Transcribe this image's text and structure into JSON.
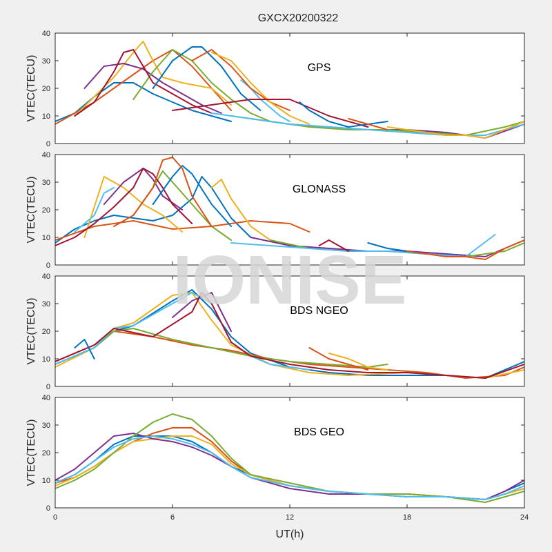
{
  "figure": {
    "title": "GXCX20200322",
    "xlabel": "UT(h)",
    "watermark": "IONISE",
    "background": "#f0f0f0",
    "axes_background": "#ffffff"
  },
  "palette": [
    "#0072BD",
    "#D95319",
    "#EDB120",
    "#7E2F8E",
    "#77AC30",
    "#4DBEEE",
    "#A2142F"
  ],
  "chart_data": [
    {
      "type": "line",
      "label": "GPS",
      "ylabel": "VTEC(TECU)",
      "xlim": [
        0,
        24
      ],
      "ylim": [
        0,
        40
      ],
      "xticks": [
        0,
        6,
        12,
        18,
        24
      ],
      "yticks": [
        0,
        10,
        20,
        30,
        40
      ],
      "grid": false,
      "series": [
        {
          "x": [
            0,
            1,
            2,
            3,
            4,
            5,
            6,
            7,
            8,
            9
          ],
          "y": [
            8,
            11,
            17,
            22,
            22,
            18,
            15,
            12,
            10,
            8
          ]
        },
        {
          "x": [
            0,
            1,
            2,
            3,
            4,
            5,
            6,
            7,
            8,
            9
          ],
          "y": [
            7,
            11,
            15,
            20,
            25,
            30,
            34,
            28,
            20,
            12
          ]
        },
        {
          "x": [
            1,
            2,
            3,
            4,
            4.5,
            5,
            5.5,
            6.5,
            8,
            9
          ],
          "y": [
            10,
            17,
            24,
            33,
            37,
            30,
            24,
            22,
            20,
            14
          ]
        },
        {
          "x": [
            1.5,
            2.5,
            3.5,
            4.5,
            5.5,
            6.5,
            7.5,
            8.5
          ],
          "y": [
            20,
            28,
            29,
            27,
            22,
            18,
            14,
            11
          ]
        },
        {
          "x": [
            4,
            5,
            6,
            7,
            8,
            9,
            10,
            11
          ],
          "y": [
            16,
            26,
            34,
            30,
            22,
            16,
            11,
            8
          ]
        },
        {
          "x": [
            9.5,
            10,
            10.5,
            11,
            11.5,
            12
          ],
          "y": [
            23,
            20,
            16,
            13,
            10,
            8
          ]
        },
        {
          "x": [
            1,
            2,
            3,
            3.5,
            4,
            5,
            6,
            7,
            8
          ],
          "y": [
            10,
            15,
            26,
            33,
            34,
            22,
            18,
            14,
            11
          ]
        },
        {
          "x": [
            5,
            6,
            7,
            7.5,
            8.5,
            9.5,
            10.5
          ],
          "y": [
            20,
            30,
            35,
            35,
            28,
            18,
            12
          ]
        },
        {
          "x": [
            7,
            8,
            9,
            10,
            11,
            12
          ],
          "y": [
            30,
            34,
            28,
            20,
            15,
            12
          ]
        },
        {
          "x": [
            8,
            9,
            10,
            11,
            12,
            13
          ],
          "y": [
            33,
            30,
            22,
            15,
            10,
            7
          ]
        },
        {
          "x": [
            10,
            12,
            14,
            16,
            18,
            20,
            22,
            24
          ],
          "y": [
            9,
            7,
            6,
            5,
            5,
            4,
            2,
            7
          ]
        },
        {
          "x": [
            9,
            11,
            13,
            15,
            17,
            19,
            21,
            23,
            24
          ],
          "y": [
            10,
            8,
            6,
            5,
            5,
            4,
            3,
            6,
            8
          ]
        },
        {
          "x": [
            8,
            10,
            12,
            14,
            16,
            18,
            20,
            22,
            24
          ],
          "y": [
            11,
            9,
            7,
            6,
            5,
            4,
            3,
            3,
            7
          ]
        },
        {
          "x": [
            6,
            8,
            10,
            12,
            14,
            16
          ],
          "y": [
            12,
            14,
            16,
            16,
            10,
            6
          ]
        },
        {
          "x": [
            12.5,
            13,
            14,
            15,
            17
          ],
          "y": [
            15,
            12,
            8,
            6,
            8
          ]
        },
        {
          "x": [
            15,
            16,
            17
          ],
          "y": [
            9,
            7,
            5
          ]
        },
        {
          "x": [
            17,
            18,
            19,
            20,
            21,
            22,
            23,
            24
          ],
          "y": [
            6,
            5,
            4,
            3,
            3,
            2,
            5,
            8
          ]
        }
      ]
    },
    {
      "type": "line",
      "label": "GLONASS",
      "ylabel": "VTEC(TECU)",
      "xlim": [
        0,
        24
      ],
      "ylim": [
        0,
        40
      ],
      "xticks": [
        0,
        6,
        12,
        18,
        24
      ],
      "yticks": [
        0,
        10,
        20,
        30,
        40
      ],
      "grid": false,
      "series": [
        {
          "x": [
            0,
            1,
            2,
            3,
            4,
            5,
            6,
            7,
            7.5,
            8,
            9,
            10
          ],
          "y": [
            8,
            13,
            16,
            18,
            17,
            16,
            18,
            24,
            32,
            28,
            17,
            10
          ]
        },
        {
          "x": [
            0,
            2,
            4,
            6,
            8,
            10,
            12,
            13
          ],
          "y": [
            9,
            14,
            16,
            13,
            14,
            16,
            15,
            12
          ]
        },
        {
          "x": [
            1.5,
            2.5,
            3.5,
            4.5,
            5.5,
            6.5
          ],
          "y": [
            10,
            32,
            28,
            22,
            18,
            12
          ]
        },
        {
          "x": [
            2.5,
            3.5,
            4.5,
            5,
            5.5,
            6.5
          ],
          "y": [
            22,
            30,
            35,
            31,
            25,
            20
          ]
        },
        {
          "x": [
            4,
            5,
            5.5,
            6,
            7,
            8,
            9
          ],
          "y": [
            18,
            28,
            34,
            30,
            22,
            14,
            9
          ]
        },
        {
          "x": [
            1,
            2,
            2.5,
            3
          ],
          "y": [
            12,
            18,
            26,
            28
          ]
        },
        {
          "x": [
            0,
            1,
            2,
            3,
            4,
            4.5,
            5,
            5.5,
            6,
            7
          ],
          "y": [
            7,
            10,
            15,
            21,
            28,
            35,
            33,
            28,
            22,
            15
          ]
        },
        {
          "x": [
            5,
            6,
            6.5,
            7,
            8,
            9
          ],
          "y": [
            22,
            32,
            36,
            33,
            22,
            14
          ]
        },
        {
          "x": [
            3,
            4,
            5,
            5.5,
            6,
            6.5,
            7,
            8
          ],
          "y": [
            14,
            18,
            28,
            38,
            39,
            35,
            25,
            14
          ]
        },
        {
          "x": [
            8,
            8.5,
            9,
            10,
            11,
            12
          ],
          "y": [
            28,
            31,
            24,
            14,
            9,
            7
          ]
        },
        {
          "x": [
            10,
            12,
            14,
            16,
            18,
            20,
            22,
            24
          ],
          "y": [
            10,
            7,
            6,
            5,
            5,
            4,
            3,
            9
          ]
        },
        {
          "x": [
            11,
            13,
            15,
            17,
            19,
            21,
            23,
            24
          ],
          "y": [
            9,
            6,
            5,
            5,
            4,
            3,
            5,
            8
          ]
        },
        {
          "x": [
            9,
            11,
            13,
            15,
            17,
            19,
            21,
            22.5
          ],
          "y": [
            8,
            7,
            6,
            5,
            5,
            4,
            3,
            11
          ]
        },
        {
          "x": [
            13.5,
            14,
            14.5,
            15
          ],
          "y": [
            7,
            9,
            7,
            5
          ]
        },
        {
          "x": [
            16,
            17,
            18,
            19
          ],
          "y": [
            8,
            6,
            5,
            4
          ]
        },
        {
          "x": [
            18,
            19,
            20,
            21,
            22,
            23,
            24
          ],
          "y": [
            5,
            4,
            3,
            3,
            2,
            6,
            9
          ]
        }
      ]
    },
    {
      "type": "line",
      "label": "BDS NGEO",
      "ylabel": "VTEC(TECU)",
      "xlim": [
        0,
        24
      ],
      "ylim": [
        0,
        40
      ],
      "xticks": [
        0,
        6,
        12,
        18,
        24
      ],
      "yticks": [
        0,
        10,
        20,
        30,
        40
      ],
      "grid": false,
      "series": [
        {
          "x": [
            0,
            2,
            3,
            4,
            6,
            7,
            8,
            9,
            10,
            12,
            14,
            16,
            18,
            20,
            22,
            24
          ],
          "y": [
            8,
            14,
            20,
            22,
            31,
            35,
            28,
            18,
            12,
            7,
            5,
            4,
            4,
            4,
            3,
            9
          ]
        },
        {
          "x": [
            0,
            2,
            3,
            5,
            7,
            9,
            11,
            13,
            15,
            17,
            19,
            21,
            23,
            24
          ],
          "y": [
            9,
            15,
            20,
            18,
            15,
            13,
            10,
            8,
            7,
            6,
            5,
            3,
            4,
            7
          ]
        },
        {
          "x": [
            0,
            2,
            3,
            4,
            5,
            6,
            7,
            8,
            9,
            11,
            13,
            15,
            18,
            20,
            22,
            24
          ],
          "y": [
            7,
            14,
            21,
            23,
            28,
            33,
            34,
            24,
            15,
            8,
            5,
            4,
            5,
            4,
            3,
            6
          ]
        },
        {
          "x": [
            6,
            7,
            8,
            9
          ],
          "y": [
            25,
            31,
            34,
            20
          ]
        },
        {
          "x": [
            0,
            2,
            3,
            4,
            6,
            8,
            10,
            12,
            14,
            16,
            17
          ],
          "y": [
            8,
            14,
            20,
            21,
            17,
            14,
            11,
            9,
            8,
            7,
            8
          ]
        },
        {
          "x": [
            0,
            2,
            3,
            4,
            6,
            7,
            8,
            9,
            10,
            11,
            13
          ],
          "y": [
            8,
            14,
            21,
            22,
            30,
            34,
            30,
            16,
            11,
            8,
            6
          ]
        },
        {
          "x": [
            0,
            2,
            3,
            5,
            7,
            7.5,
            8,
            9,
            10,
            12,
            14,
            16,
            18,
            20,
            22,
            24
          ],
          "y": [
            9,
            15,
            21,
            18,
            27,
            34,
            30,
            16,
            11,
            8,
            6,
            5,
            5,
            4,
            3,
            8
          ]
        },
        {
          "x": [
            1,
            1.5,
            2
          ],
          "y": [
            14,
            17,
            10
          ]
        },
        {
          "x": [
            13,
            14,
            15,
            16
          ],
          "y": [
            14,
            10,
            8,
            6
          ]
        },
        {
          "x": [
            14,
            15,
            16,
            17
          ],
          "y": [
            12,
            10,
            7,
            6
          ]
        }
      ]
    },
    {
      "type": "line",
      "label": "BDS GEO",
      "ylabel": "VTEC(TECU)",
      "xlim": [
        0,
        24
      ],
      "ylim": [
        0,
        40
      ],
      "xticks": [
        0,
        6,
        12,
        18,
        24
      ],
      "yticks": [
        0,
        10,
        20,
        30,
        40
      ],
      "grid": false,
      "series": [
        {
          "x": [
            0,
            1,
            2,
            3,
            4,
            5,
            6,
            7,
            8,
            9,
            10,
            12,
            14,
            16,
            18,
            20,
            22,
            23,
            24
          ],
          "y": [
            9,
            12,
            17,
            23,
            26,
            26,
            26,
            24,
            20,
            15,
            12,
            8,
            6,
            5,
            5,
            4,
            3,
            6,
            9
          ]
        },
        {
          "x": [
            0,
            1,
            2,
            3,
            4,
            5,
            6,
            7,
            8,
            9,
            10,
            12,
            14,
            16,
            18,
            20,
            22,
            23,
            24
          ],
          "y": [
            9,
            11,
            15,
            20,
            24,
            27,
            29,
            29,
            24,
            17,
            12,
            8,
            6,
            5,
            5,
            4,
            3,
            5,
            7
          ]
        },
        {
          "x": [
            0,
            1,
            2,
            3,
            4,
            5,
            6,
            7,
            8,
            9,
            10,
            12,
            14,
            16,
            18,
            20,
            22,
            23,
            24
          ],
          "y": [
            8,
            11,
            15,
            20,
            24,
            25,
            26,
            26,
            23,
            16,
            12,
            8,
            6,
            5,
            5,
            4,
            3,
            5,
            7
          ]
        },
        {
          "x": [
            0,
            1,
            2,
            3,
            4,
            5,
            6,
            7,
            8,
            9,
            10,
            12,
            14,
            16,
            18,
            20,
            22,
            23,
            24
          ],
          "y": [
            10,
            14,
            20,
            26,
            27,
            25,
            24,
            22,
            19,
            15,
            11,
            7,
            5,
            5,
            4,
            4,
            3,
            6,
            10
          ]
        },
        {
          "x": [
            0,
            1,
            2,
            3,
            4,
            5,
            6,
            7,
            8,
            9,
            10,
            12,
            14,
            16,
            18,
            20,
            22,
            23,
            24
          ],
          "y": [
            7,
            10,
            14,
            20,
            26,
            31,
            34,
            32,
            26,
            18,
            12,
            9,
            6,
            5,
            5,
            4,
            2,
            4,
            6
          ]
        },
        {
          "x": [
            0,
            1,
            2,
            3,
            4,
            5,
            6,
            7,
            8,
            9,
            10,
            12,
            14,
            16,
            18,
            20,
            22,
            23,
            24
          ],
          "y": [
            9,
            12,
            17,
            22,
            25,
            26,
            25,
            23,
            20,
            15,
            11,
            8,
            6,
            5,
            4,
            4,
            3,
            5,
            8
          ]
        }
      ]
    }
  ]
}
